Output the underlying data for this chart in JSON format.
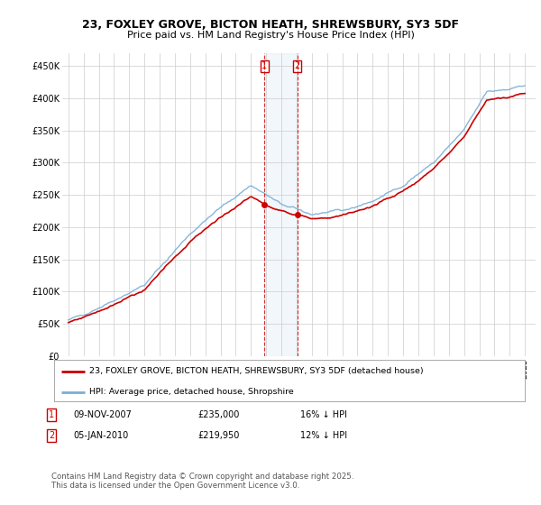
{
  "title": "23, FOXLEY GROVE, BICTON HEATH, SHREWSBURY, SY3 5DF",
  "subtitle": "Price paid vs. HM Land Registry's House Price Index (HPI)",
  "legend_line1": "23, FOXLEY GROVE, BICTON HEATH, SHREWSBURY, SY3 5DF (detached house)",
  "legend_line2": "HPI: Average price, detached house, Shropshire",
  "sale1_date": "09-NOV-2007",
  "sale1_price": "£235,000",
  "sale1_hpi": "16% ↓ HPI",
  "sale2_date": "05-JAN-2010",
  "sale2_price": "£219,950",
  "sale2_hpi": "12% ↓ HPI",
  "footer": "Contains HM Land Registry data © Crown copyright and database right 2025.\nThis data is licensed under the Open Government Licence v3.0.",
  "red_color": "#cc0000",
  "blue_color": "#7aaed6",
  "vline_color": "#cc0000",
  "span_color": "#cce0f0",
  "ylim_min": 0,
  "ylim_max": 470000,
  "background_color": "#ffffff",
  "grid_color": "#cccccc",
  "sale1_year_float": 2007.875,
  "sale2_year_float": 2010.042,
  "sale1_price_val": 235000,
  "sale2_price_val": 219950
}
